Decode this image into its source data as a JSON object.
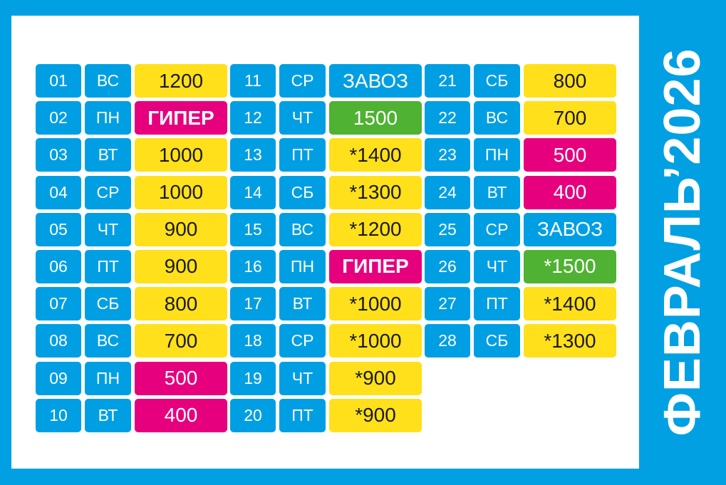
{
  "title": "ФЕВРАЛЬ’2026",
  "colors": {
    "frame": "#00a0e3",
    "blue": "#009fe3",
    "yellow": "#ffe01b",
    "pink": "#e6007e",
    "green": "#4fb232"
  },
  "columns": [
    [
      {
        "day": "01",
        "weekday": "ВС",
        "value": "1200",
        "color": "yellow"
      },
      {
        "day": "02",
        "weekday": "ПН",
        "value": "ГИПЕР",
        "color": "pink"
      },
      {
        "day": "03",
        "weekday": "ВТ",
        "value": "1000",
        "color": "yellow"
      },
      {
        "day": "04",
        "weekday": "СР",
        "value": "1000",
        "color": "yellow"
      },
      {
        "day": "05",
        "weekday": "ЧТ",
        "value": "900",
        "color": "yellow"
      },
      {
        "day": "06",
        "weekday": "ПТ",
        "value": "900",
        "color": "yellow"
      },
      {
        "day": "07",
        "weekday": "СБ",
        "value": "800",
        "color": "yellow"
      },
      {
        "day": "08",
        "weekday": "ВС",
        "value": "700",
        "color": "yellow"
      },
      {
        "day": "09",
        "weekday": "ПН",
        "value": "500",
        "color": "pink"
      },
      {
        "day": "10",
        "weekday": "ВТ",
        "value": "400",
        "color": "pink"
      }
    ],
    [
      {
        "day": "11",
        "weekday": "СР",
        "value": "ЗАВОЗ",
        "color": "blue"
      },
      {
        "day": "12",
        "weekday": "ЧТ",
        "value": "1500",
        "color": "green"
      },
      {
        "day": "13",
        "weekday": "ПТ",
        "value": "*1400",
        "color": "yellow"
      },
      {
        "day": "14",
        "weekday": "СБ",
        "value": "*1300",
        "color": "yellow"
      },
      {
        "day": "15",
        "weekday": "ВС",
        "value": "*1200",
        "color": "yellow"
      },
      {
        "day": "16",
        "weekday": "ПН",
        "value": "ГИПЕР",
        "color": "pink"
      },
      {
        "day": "17",
        "weekday": "ВТ",
        "value": "*1000",
        "color": "yellow"
      },
      {
        "day": "18",
        "weekday": "СР",
        "value": "*1000",
        "color": "yellow"
      },
      {
        "day": "19",
        "weekday": "ЧТ",
        "value": "*900",
        "color": "yellow"
      },
      {
        "day": "20",
        "weekday": "ПТ",
        "value": "*900",
        "color": "yellow"
      }
    ],
    [
      {
        "day": "21",
        "weekday": "СБ",
        "value": "800",
        "color": "yellow"
      },
      {
        "day": "22",
        "weekday": "ВС",
        "value": "700",
        "color": "yellow"
      },
      {
        "day": "23",
        "weekday": "ПН",
        "value": "500",
        "color": "pink"
      },
      {
        "day": "24",
        "weekday": "ВТ",
        "value": "400",
        "color": "pink"
      },
      {
        "day": "25",
        "weekday": "СР",
        "value": "ЗАВОЗ",
        "color": "blue"
      },
      {
        "day": "26",
        "weekday": "ЧТ",
        "value": "*1500",
        "color": "green"
      },
      {
        "day": "27",
        "weekday": "ПТ",
        "value": "*1400",
        "color": "yellow"
      },
      {
        "day": "28",
        "weekday": "СБ",
        "value": "*1300",
        "color": "yellow"
      }
    ]
  ]
}
